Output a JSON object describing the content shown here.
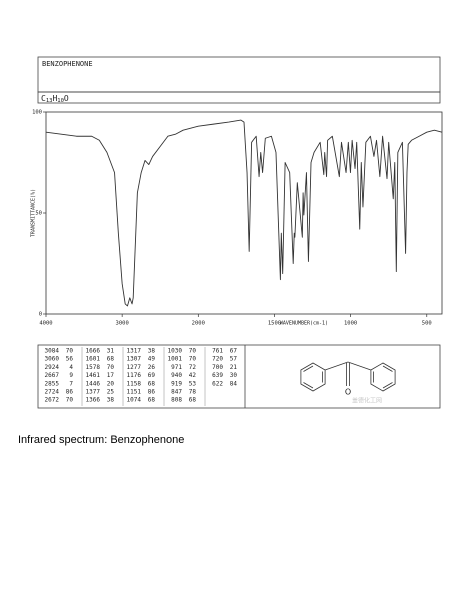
{
  "header": {
    "name": "BENZOPHENONE",
    "formula": [
      "C",
      "13",
      "H",
      "10",
      "O"
    ]
  },
  "chart_data": {
    "type": "line",
    "x": [
      4000,
      3800,
      3600,
      3400,
      3300,
      3200,
      3100,
      3050,
      3000,
      2960,
      2930,
      2900,
      2870,
      2855,
      2800,
      2750,
      2700,
      2650,
      2600,
      2500,
      2400,
      2300,
      2200,
      2100,
      2000,
      1900,
      1800,
      1720,
      1700,
      1680,
      1666,
      1650,
      1620,
      1601,
      1590,
      1578,
      1560,
      1520,
      1490,
      1461,
      1455,
      1446,
      1430,
      1400,
      1377,
      1370,
      1366,
      1350,
      1317,
      1312,
      1307,
      1290,
      1277,
      1260,
      1240,
      1200,
      1176,
      1170,
      1158,
      1151,
      1120,
      1074,
      1060,
      1030,
      1015,
      1001,
      990,
      971,
      960,
      940,
      930,
      919,
      900,
      870,
      847,
      830,
      808,
      790,
      761,
      750,
      720,
      710,
      700,
      690,
      660,
      639,
      630,
      622,
      600,
      550,
      500,
      450,
      400
    ],
    "values": [
      90,
      89,
      88,
      88,
      86,
      80,
      70,
      40,
      15,
      5,
      4,
      8,
      5,
      8,
      60,
      70,
      76,
      74,
      78,
      83,
      88,
      89,
      91,
      92,
      93,
      94,
      95,
      96,
      95,
      70,
      31,
      85,
      88,
      68,
      80,
      70,
      87,
      88,
      80,
      17,
      40,
      20,
      75,
      70,
      25,
      40,
      38,
      65,
      38,
      60,
      49,
      70,
      26,
      75,
      80,
      85,
      69,
      80,
      68,
      86,
      88,
      68,
      85,
      70,
      85,
      70,
      86,
      72,
      85,
      42,
      75,
      53,
      85,
      88,
      78,
      86,
      68,
      88,
      67,
      85,
      57,
      75,
      21,
      80,
      85,
      30,
      70,
      84,
      86,
      88,
      90,
      91,
      90
    ],
    "color": "#333333",
    "xlim": [
      4000,
      400
    ],
    "xticks": [
      4000,
      3000,
      2000,
      1500,
      1000,
      500
    ],
    "ylim": [
      0,
      100
    ],
    "yticks": [
      0,
      50,
      100
    ],
    "xlabel": "WAVENUMBER(cm-1)",
    "ylabel": "TRANSMITTANCE(%)"
  },
  "peak_table": [
    [
      [
        3084,
        70
      ],
      [
        3060,
        56
      ],
      [
        2924,
        4
      ],
      [
        2667,
        9
      ],
      [
        2855,
        7
      ],
      [
        2724,
        86
      ],
      [
        2672,
        70
      ]
    ],
    [
      [
        1666,
        31
      ],
      [
        1601,
        68
      ],
      [
        1578,
        70
      ],
      [
        1461,
        17
      ],
      [
        1446,
        20
      ],
      [
        1377,
        25
      ],
      [
        1366,
        38
      ]
    ],
    [
      [
        1317,
        38
      ],
      [
        1307,
        49
      ],
      [
        1277,
        26
      ],
      [
        1176,
        69
      ],
      [
        1158,
        68
      ],
      [
        1151,
        86
      ],
      [
        1074,
        68
      ]
    ],
    [
      [
        1030,
        70
      ],
      [
        1001,
        70
      ],
      [
        971,
        72
      ],
      [
        940,
        42
      ],
      [
        919,
        53
      ],
      [
        847,
        78
      ],
      [
        808,
        68
      ]
    ],
    [
      [
        761,
        67
      ],
      [
        720,
        57
      ],
      [
        700,
        21
      ],
      [
        639,
        30
      ],
      [
        622,
        84
      ]
    ]
  ],
  "structure": {
    "atom_label": "O",
    "watermark": "盖德化工网"
  },
  "caption": "Infrared spectrum: Benzophenone"
}
